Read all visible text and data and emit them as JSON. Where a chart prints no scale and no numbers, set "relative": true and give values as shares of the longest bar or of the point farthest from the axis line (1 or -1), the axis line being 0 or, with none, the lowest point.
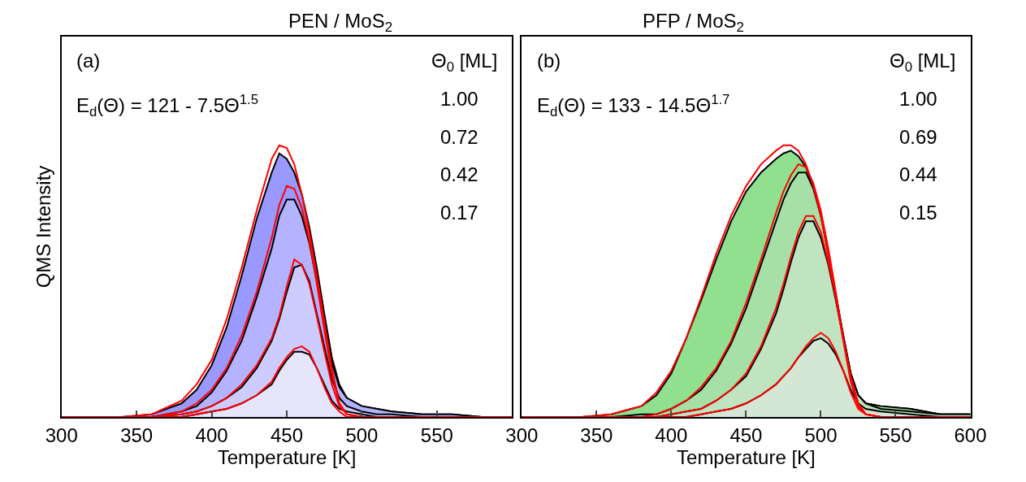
{
  "chart_data": [
    {
      "type": "area",
      "title": "PEN / MoS$_{2}$",
      "xlabel": "Temperature [K]",
      "ylabel": "QMS Intensity",
      "relative": true,
      "tick_labels": "x",
      "xlim": [
        300,
        600
      ],
      "xticks": [
        300,
        350,
        400,
        450,
        500,
        550
      ],
      "x": [
        300,
        340,
        360,
        380,
        390,
        400,
        410,
        420,
        430,
        440,
        445,
        450,
        455,
        460,
        465,
        470,
        475,
        480,
        485,
        490,
        500,
        510,
        520,
        540,
        560,
        580,
        600
      ],
      "annotations": [
        "(a)",
        "E$_{d}$(Θ) = 121 - 7.5Θ$^{1.5}$",
        "Θ$_{0}$ [ML]",
        "1.00",
        "0.72",
        "0.42",
        "0.17"
      ],
      "series": [
        {
          "color": "#9999ff",
          "values": [
            0,
            0,
            0.01,
            0.05,
            0.1,
            0.19,
            0.33,
            0.52,
            0.73,
            0.9,
            0.97,
            0.95,
            0.9,
            0.82,
            0.7,
            0.55,
            0.38,
            0.22,
            0.12,
            0.07,
            0.04,
            0.03,
            0.02,
            0.01,
            0.01,
            0,
            0
          ]
        },
        {
          "color": "#b3b3ff",
          "values": [
            0,
            0,
            0,
            0.02,
            0.04,
            0.09,
            0.17,
            0.28,
            0.44,
            0.62,
            0.74,
            0.8,
            0.8,
            0.74,
            0.64,
            0.5,
            0.35,
            0.2,
            0.11,
            0.07,
            0.04,
            0.03,
            0.02,
            0.01,
            0.01,
            0,
            0
          ]
        },
        {
          "color": "#ccccff",
          "values": [
            0,
            0,
            0,
            0.01,
            0.02,
            0.04,
            0.07,
            0.11,
            0.18,
            0.28,
            0.36,
            0.46,
            0.55,
            0.56,
            0.5,
            0.38,
            0.26,
            0.14,
            0.07,
            0.04,
            0.02,
            0.01,
            0.01,
            0,
            0,
            0,
            0
          ]
        },
        {
          "color": "#e5e5fc",
          "values": [
            0,
            0,
            0,
            0,
            0.01,
            0.02,
            0.03,
            0.05,
            0.08,
            0.12,
            0.17,
            0.21,
            0.24,
            0.24,
            0.23,
            0.18,
            0.12,
            0.06,
            0.03,
            0.02,
            0.01,
            0,
            0,
            0,
            0,
            0,
            0
          ]
        },
        {
          "type": "line",
          "color": "#ff0000",
          "values": [
            0,
            0,
            0.01,
            0.06,
            0.12,
            0.21,
            0.36,
            0.55,
            0.76,
            0.95,
            1.0,
            0.99,
            0.93,
            0.82,
            0.68,
            0.52,
            0.35,
            0.18,
            0.05,
            0.01,
            0,
            0,
            0,
            0,
            0,
            0,
            0
          ]
        },
        {
          "type": "line",
          "color": "#ff0000",
          "values": [
            0,
            0,
            0,
            0.02,
            0.05,
            0.1,
            0.18,
            0.3,
            0.46,
            0.66,
            0.78,
            0.85,
            0.84,
            0.77,
            0.65,
            0.49,
            0.32,
            0.16,
            0.05,
            0.01,
            0,
            0,
            0,
            0,
            0,
            0,
            0
          ]
        },
        {
          "type": "line",
          "color": "#ff0000",
          "values": [
            0,
            0,
            0,
            0.01,
            0.02,
            0.04,
            0.07,
            0.12,
            0.19,
            0.29,
            0.37,
            0.48,
            0.58,
            0.56,
            0.49,
            0.37,
            0.24,
            0.12,
            0.04,
            0.01,
            0,
            0,
            0,
            0,
            0,
            0,
            0
          ]
        },
        {
          "type": "line",
          "color": "#ff0000",
          "values": [
            0,
            0,
            0,
            0,
            0.01,
            0.02,
            0.03,
            0.05,
            0.08,
            0.13,
            0.18,
            0.22,
            0.25,
            0.26,
            0.24,
            0.18,
            0.11,
            0.05,
            0.02,
            0,
            0,
            0,
            0,
            0,
            0,
            0,
            0
          ]
        }
      ]
    },
    {
      "type": "area",
      "title": "PFP / MoS$_{2}$",
      "xlabel": "Temperature [K]",
      "relative": true,
      "tick_labels": "x",
      "xlim": [
        300,
        600
      ],
      "xticks": [
        300,
        350,
        400,
        450,
        500,
        550,
        600
      ],
      "x": [
        300,
        340,
        360,
        380,
        390,
        400,
        410,
        420,
        430,
        440,
        450,
        460,
        470,
        475,
        480,
        485,
        490,
        495,
        500,
        505,
        510,
        515,
        520,
        525,
        530,
        540,
        560,
        580,
        600
      ],
      "annotations": [
        "(b)",
        "E$_{d}$(Θ) = 133 - 14.5Θ$^{1.7}$",
        "Θ$_{0}$ [ML]",
        "1.00",
        "0.69",
        "0.44",
        "0.15"
      ],
      "series": [
        {
          "color": "#90e090",
          "values": [
            0,
            0,
            0.01,
            0.04,
            0.08,
            0.16,
            0.29,
            0.43,
            0.58,
            0.72,
            0.83,
            0.9,
            0.95,
            0.97,
            0.98,
            0.96,
            0.92,
            0.84,
            0.73,
            0.6,
            0.45,
            0.3,
            0.16,
            0.08,
            0.05,
            0.04,
            0.03,
            0.01,
            0.01
          ]
        },
        {
          "color": "#a6e0a6",
          "values": [
            0,
            0,
            0,
            0.01,
            0.01,
            0.03,
            0.06,
            0.1,
            0.17,
            0.27,
            0.4,
            0.56,
            0.72,
            0.8,
            0.86,
            0.9,
            0.9,
            0.84,
            0.74,
            0.6,
            0.45,
            0.3,
            0.16,
            0.08,
            0.05,
            0.04,
            0.03,
            0.01,
            0.01
          ]
        },
        {
          "color": "#bfe4bf",
          "values": [
            0,
            0,
            0,
            0,
            0,
            0.01,
            0.02,
            0.03,
            0.06,
            0.1,
            0.15,
            0.25,
            0.38,
            0.47,
            0.57,
            0.66,
            0.72,
            0.72,
            0.66,
            0.56,
            0.43,
            0.29,
            0.16,
            0.08,
            0.05,
            0.03,
            0.02,
            0.01,
            0.01
          ]
        },
        {
          "color": "#d4e6d4",
          "values": [
            0,
            0,
            0,
            0,
            0,
            0,
            0,
            0.01,
            0.02,
            0.03,
            0.05,
            0.08,
            0.12,
            0.15,
            0.18,
            0.22,
            0.25,
            0.28,
            0.29,
            0.27,
            0.23,
            0.17,
            0.1,
            0.05,
            0.03,
            0.02,
            0.01,
            0,
            0
          ]
        },
        {
          "type": "line",
          "color": "#ff0000",
          "values": [
            0,
            0,
            0.01,
            0.04,
            0.09,
            0.17,
            0.29,
            0.44,
            0.6,
            0.74,
            0.85,
            0.93,
            0.98,
            1.0,
            1.0,
            0.98,
            0.93,
            0.85,
            0.74,
            0.6,
            0.44,
            0.28,
            0.13,
            0.04,
            0.01,
            0,
            0,
            0,
            0
          ]
        },
        {
          "type": "line",
          "color": "#ff0000",
          "values": [
            0,
            0,
            0,
            0,
            0.01,
            0.03,
            0.06,
            0.11,
            0.18,
            0.28,
            0.42,
            0.58,
            0.75,
            0.83,
            0.89,
            0.93,
            0.92,
            0.86,
            0.76,
            0.62,
            0.46,
            0.29,
            0.14,
            0.05,
            0.01,
            0,
            0,
            0,
            0
          ]
        },
        {
          "type": "line",
          "color": "#ff0000",
          "values": [
            0,
            0,
            0,
            0,
            0,
            0.01,
            0.02,
            0.03,
            0.06,
            0.1,
            0.16,
            0.26,
            0.4,
            0.49,
            0.59,
            0.68,
            0.74,
            0.74,
            0.68,
            0.57,
            0.44,
            0.29,
            0.15,
            0.05,
            0.01,
            0,
            0,
            0,
            0
          ]
        },
        {
          "type": "line",
          "color": "#ff0000",
          "values": [
            0,
            0,
            0,
            0,
            0,
            0,
            0,
            0.01,
            0.02,
            0.03,
            0.05,
            0.08,
            0.12,
            0.15,
            0.18,
            0.22,
            0.26,
            0.29,
            0.31,
            0.29,
            0.24,
            0.17,
            0.09,
            0.03,
            0.01,
            0,
            0,
            0,
            0
          ]
        }
      ]
    }
  ]
}
